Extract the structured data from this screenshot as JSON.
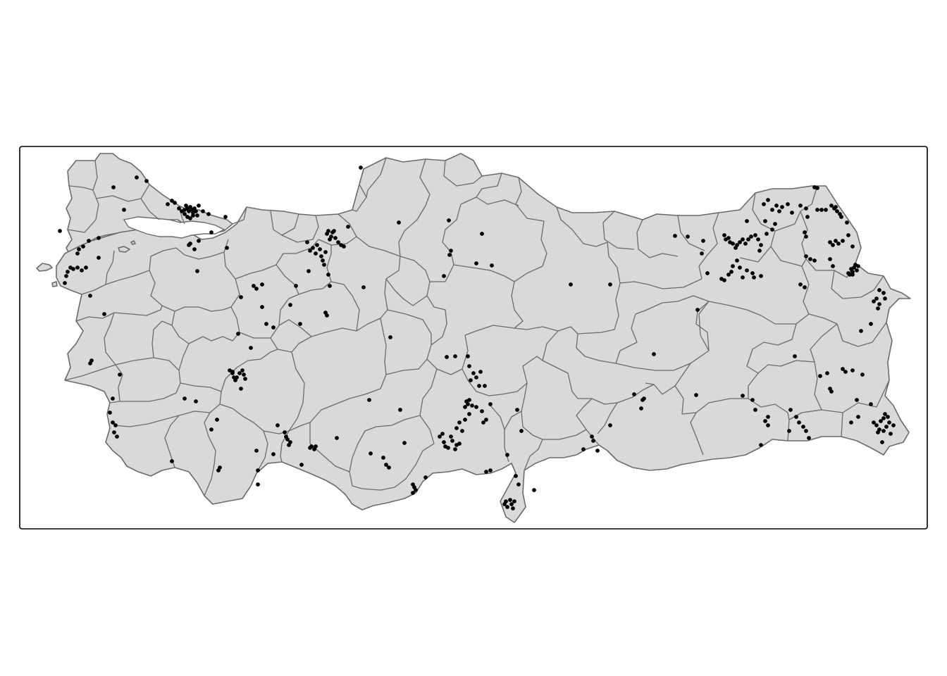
{
  "map": {
    "colors": {
      "land": "#d9d9d9",
      "border": "#6b6b6b",
      "points": "#000000",
      "frame": "#000000",
      "background": "#ffffff"
    }
  }
}
